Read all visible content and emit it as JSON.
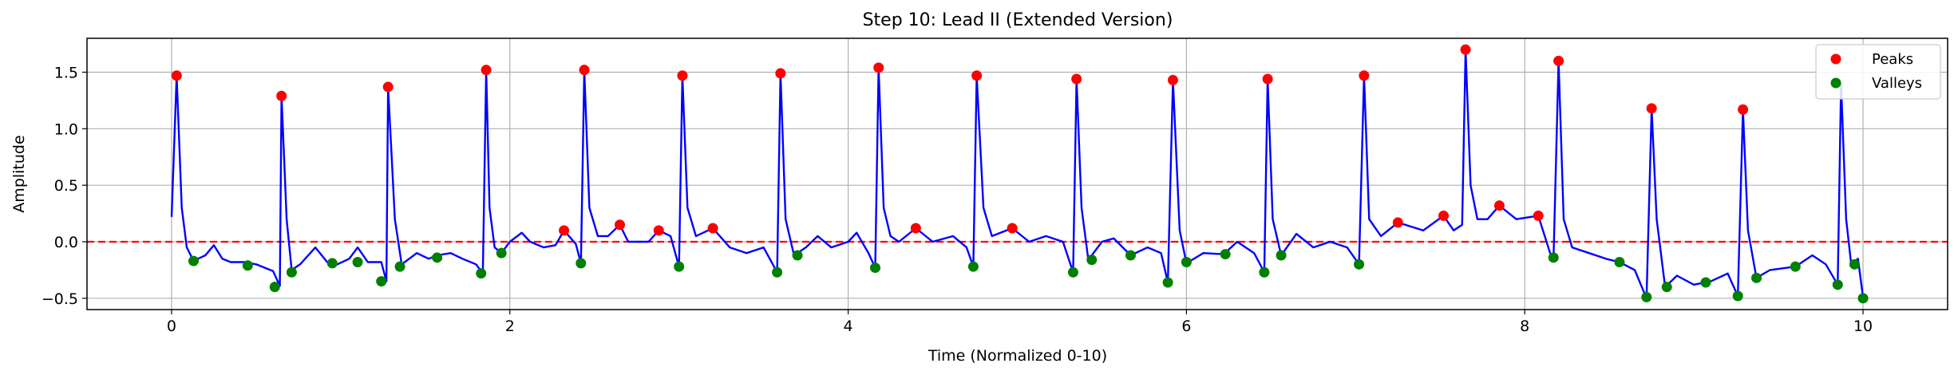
{
  "chart_data": {
    "type": "line",
    "title": "Step 10: Lead II (Extended Version)",
    "xlabel": "Time (Normalized 0-10)",
    "ylabel": "Amplitude",
    "xlim": [
      -0.5,
      10.5
    ],
    "ylim": [
      -0.6,
      1.8
    ],
    "xticks": [
      0,
      2,
      4,
      6,
      8,
      10
    ],
    "yticks": [
      -0.5,
      0.0,
      0.5,
      1.0,
      1.5
    ],
    "xtick_labels": [
      "0",
      "2",
      "4",
      "6",
      "8",
      "10"
    ],
    "ytick_labels": [
      "−0.5",
      "0.0",
      "0.5",
      "1.0",
      "1.5"
    ],
    "grid": true,
    "legend_position": "top-right",
    "reference_line": {
      "y": 0.0,
      "style": "dashed",
      "color": "#ff0000"
    },
    "signal": {
      "color": "#0000ff",
      "points": [
        [
          0.0,
          0.22
        ],
        [
          0.03,
          1.47
        ],
        [
          0.06,
          0.3
        ],
        [
          0.09,
          -0.05
        ],
        [
          0.13,
          -0.17
        ],
        [
          0.2,
          -0.12
        ],
        [
          0.25,
          -0.03
        ],
        [
          0.3,
          -0.15
        ],
        [
          0.35,
          -0.18
        ],
        [
          0.43,
          -0.18
        ],
        [
          0.5,
          -0.2
        ],
        [
          0.6,
          -0.26
        ],
        [
          0.64,
          -0.39
        ],
        [
          0.65,
          1.29
        ],
        [
          0.68,
          0.2
        ],
        [
          0.71,
          -0.25
        ],
        [
          0.76,
          -0.2
        ],
        [
          0.85,
          -0.05
        ],
        [
          0.92,
          -0.18
        ],
        [
          0.98,
          -0.2
        ],
        [
          1.05,
          -0.15
        ],
        [
          1.1,
          -0.05
        ],
        [
          1.16,
          -0.18
        ],
        [
          1.24,
          -0.18
        ],
        [
          1.27,
          -0.35
        ],
        [
          1.28,
          1.37
        ],
        [
          1.32,
          0.2
        ],
        [
          1.36,
          -0.2
        ],
        [
          1.45,
          -0.1
        ],
        [
          1.52,
          -0.15
        ],
        [
          1.57,
          -0.12
        ],
        [
          1.65,
          -0.1
        ],
        [
          1.72,
          -0.15
        ],
        [
          1.8,
          -0.2
        ],
        [
          1.84,
          -0.28
        ],
        [
          1.86,
          1.52
        ],
        [
          1.88,
          0.3
        ],
        [
          1.91,
          -0.05
        ],
        [
          1.95,
          -0.1
        ],
        [
          2.0,
          0.0
        ],
        [
          2.07,
          0.08
        ],
        [
          2.12,
          0.0
        ],
        [
          2.2,
          -0.05
        ],
        [
          2.27,
          -0.03
        ],
        [
          2.32,
          0.1
        ],
        [
          2.39,
          -0.02
        ],
        [
          2.42,
          -0.19
        ],
        [
          2.44,
          1.52
        ],
        [
          2.47,
          0.3
        ],
        [
          2.52,
          0.05
        ],
        [
          2.58,
          0.05
        ],
        [
          2.65,
          0.15
        ],
        [
          2.7,
          0.0
        ],
        [
          2.82,
          0.0
        ],
        [
          2.88,
          0.1
        ],
        [
          2.95,
          0.05
        ],
        [
          3.0,
          -0.22
        ],
        [
          3.02,
          1.47
        ],
        [
          3.05,
          0.3
        ],
        [
          3.1,
          0.05
        ],
        [
          3.2,
          0.12
        ],
        [
          3.3,
          -0.05
        ],
        [
          3.4,
          -0.1
        ],
        [
          3.5,
          -0.05
        ],
        [
          3.58,
          -0.27
        ],
        [
          3.6,
          1.49
        ],
        [
          3.63,
          0.2
        ],
        [
          3.68,
          -0.12
        ],
        [
          3.75,
          -0.05
        ],
        [
          3.82,
          0.05
        ],
        [
          3.9,
          -0.05
        ],
        [
          4.0,
          0.0
        ],
        [
          4.05,
          0.08
        ],
        [
          4.12,
          -0.1
        ],
        [
          4.16,
          -0.23
        ],
        [
          4.18,
          1.54
        ],
        [
          4.21,
          0.3
        ],
        [
          4.25,
          0.05
        ],
        [
          4.3,
          0.0
        ],
        [
          4.4,
          0.12
        ],
        [
          4.5,
          0.0
        ],
        [
          4.62,
          0.05
        ],
        [
          4.7,
          -0.05
        ],
        [
          4.74,
          -0.22
        ],
        [
          4.76,
          1.47
        ],
        [
          4.8,
          0.3
        ],
        [
          4.85,
          0.05
        ],
        [
          4.97,
          0.12
        ],
        [
          5.07,
          0.0
        ],
        [
          5.17,
          0.05
        ],
        [
          5.27,
          0.0
        ],
        [
          5.33,
          -0.27
        ],
        [
          5.35,
          1.44
        ],
        [
          5.38,
          0.3
        ],
        [
          5.42,
          -0.16
        ],
        [
          5.5,
          0.0
        ],
        [
          5.57,
          0.03
        ],
        [
          5.67,
          -0.12
        ],
        [
          5.77,
          -0.05
        ],
        [
          5.85,
          -0.1
        ],
        [
          5.89,
          -0.36
        ],
        [
          5.92,
          1.43
        ],
        [
          5.96,
          0.1
        ],
        [
          6.0,
          -0.19
        ],
        [
          6.1,
          -0.1
        ],
        [
          6.22,
          -0.11
        ],
        [
          6.3,
          0.0
        ],
        [
          6.4,
          -0.1
        ],
        [
          6.46,
          -0.27
        ],
        [
          6.48,
          1.44
        ],
        [
          6.51,
          0.2
        ],
        [
          6.56,
          -0.12
        ],
        [
          6.65,
          0.07
        ],
        [
          6.75,
          -0.05
        ],
        [
          6.85,
          0.0
        ],
        [
          6.95,
          -0.05
        ],
        [
          7.02,
          -0.2
        ],
        [
          7.05,
          1.47
        ],
        [
          7.08,
          0.2
        ],
        [
          7.15,
          0.05
        ],
        [
          7.25,
          0.17
        ],
        [
          7.4,
          0.1
        ],
        [
          7.52,
          0.23
        ],
        [
          7.58,
          0.1
        ],
        [
          7.63,
          0.15
        ],
        [
          7.65,
          1.7
        ],
        [
          7.68,
          0.5
        ],
        [
          7.72,
          0.2
        ],
        [
          7.78,
          0.2
        ],
        [
          7.85,
          0.32
        ],
        [
          7.95,
          0.2
        ],
        [
          8.08,
          0.23
        ],
        [
          8.15,
          -0.1
        ],
        [
          8.17,
          -0.14
        ],
        [
          8.2,
          1.6
        ],
        [
          8.23,
          0.2
        ],
        [
          8.28,
          -0.05
        ],
        [
          8.38,
          -0.1
        ],
        [
          8.48,
          -0.15
        ],
        [
          8.56,
          -0.18
        ],
        [
          8.65,
          -0.25
        ],
        [
          8.72,
          -0.5
        ],
        [
          8.75,
          1.18
        ],
        [
          8.78,
          0.2
        ],
        [
          8.83,
          -0.4
        ],
        [
          8.9,
          -0.3
        ],
        [
          9.0,
          -0.38
        ],
        [
          9.1,
          -0.35
        ],
        [
          9.2,
          -0.28
        ],
        [
          9.26,
          -0.48
        ],
        [
          9.29,
          1.17
        ],
        [
          9.32,
          0.1
        ],
        [
          9.37,
          -0.32
        ],
        [
          9.45,
          -0.25
        ],
        [
          9.6,
          -0.22
        ],
        [
          9.7,
          -0.12
        ],
        [
          9.78,
          -0.2
        ],
        [
          9.85,
          -0.38
        ],
        [
          9.87,
          1.4
        ],
        [
          9.9,
          0.2
        ],
        [
          9.93,
          -0.2
        ],
        [
          9.97,
          -0.15
        ],
        [
          10.0,
          -0.49
        ]
      ]
    },
    "series": [
      {
        "name": "Peaks",
        "type": "scatter",
        "color": "#ff0000",
        "points": [
          [
            0.03,
            1.47
          ],
          [
            0.65,
            1.29
          ],
          [
            1.28,
            1.37
          ],
          [
            1.86,
            1.52
          ],
          [
            2.32,
            0.1
          ],
          [
            2.44,
            1.52
          ],
          [
            2.65,
            0.15
          ],
          [
            2.88,
            0.1
          ],
          [
            3.02,
            1.47
          ],
          [
            3.2,
            0.12
          ],
          [
            3.6,
            1.49
          ],
          [
            4.18,
            1.54
          ],
          [
            4.4,
            0.12
          ],
          [
            4.76,
            1.47
          ],
          [
            4.97,
            0.12
          ],
          [
            5.35,
            1.44
          ],
          [
            5.92,
            1.43
          ],
          [
            6.48,
            1.44
          ],
          [
            7.05,
            1.47
          ],
          [
            7.25,
            0.17
          ],
          [
            7.52,
            0.23
          ],
          [
            7.65,
            1.7
          ],
          [
            7.85,
            0.32
          ],
          [
            8.08,
            0.23
          ],
          [
            8.2,
            1.6
          ],
          [
            8.75,
            1.18
          ],
          [
            9.29,
            1.17
          ]
        ]
      },
      {
        "name": "Valleys",
        "type": "scatter",
        "color": "#008000",
        "points": [
          [
            0.13,
            -0.17
          ],
          [
            0.45,
            -0.21
          ],
          [
            0.61,
            -0.4
          ],
          [
            0.71,
            -0.27
          ],
          [
            0.95,
            -0.19
          ],
          [
            1.1,
            -0.18
          ],
          [
            1.24,
            -0.35
          ],
          [
            1.35,
            -0.22
          ],
          [
            1.57,
            -0.14
          ],
          [
            1.83,
            -0.28
          ],
          [
            1.95,
            -0.1
          ],
          [
            2.42,
            -0.19
          ],
          [
            3.0,
            -0.22
          ],
          [
            3.58,
            -0.27
          ],
          [
            3.7,
            -0.12
          ],
          [
            4.16,
            -0.23
          ],
          [
            4.74,
            -0.22
          ],
          [
            5.33,
            -0.27
          ],
          [
            5.44,
            -0.16
          ],
          [
            5.67,
            -0.12
          ],
          [
            5.89,
            -0.36
          ],
          [
            6.0,
            -0.18
          ],
          [
            6.23,
            -0.11
          ],
          [
            6.46,
            -0.27
          ],
          [
            6.56,
            -0.12
          ],
          [
            7.02,
            -0.2
          ],
          [
            8.17,
            -0.14
          ],
          [
            8.56,
            -0.18
          ],
          [
            8.72,
            -0.49
          ],
          [
            8.84,
            -0.4
          ],
          [
            9.07,
            -0.36
          ],
          [
            9.26,
            -0.48
          ],
          [
            9.37,
            -0.32
          ],
          [
            9.6,
            -0.22
          ],
          [
            9.85,
            -0.38
          ],
          [
            9.95,
            -0.2
          ],
          [
            10.0,
            -0.5
          ]
        ]
      }
    ]
  }
}
